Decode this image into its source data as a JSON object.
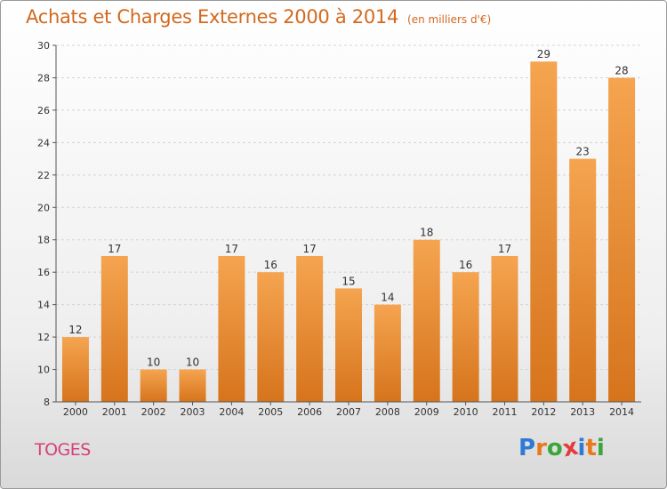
{
  "header": {
    "title": "Achats et Charges Externes 2000 à 2014",
    "subtitle": "(en milliers d'€)"
  },
  "footer": {
    "town": "TOGES",
    "logo_text": "Proxiti",
    "logo_colors": [
      "#2e7bd6",
      "#e8791e",
      "#3aa63a",
      "#e23c3c",
      "#2e7bd6",
      "#e8791e",
      "#3aa63a"
    ]
  },
  "chart_data": {
    "type": "bar",
    "title": "Achats et Charges Externes 2000 à 2014",
    "subtitle": "(en milliers d'€)",
    "categories": [
      "2000",
      "2001",
      "2002",
      "2003",
      "2004",
      "2005",
      "2006",
      "2007",
      "2008",
      "2009",
      "2010",
      "2011",
      "2012",
      "2013",
      "2014"
    ],
    "values": [
      12,
      17,
      10,
      10,
      17,
      16,
      17,
      15,
      14,
      18,
      16,
      17,
      29,
      23,
      28
    ],
    "ylim": [
      8,
      30
    ],
    "yticks": [
      8,
      10,
      12,
      14,
      16,
      18,
      20,
      22,
      24,
      26,
      28,
      30
    ],
    "grid": true,
    "bar_color_top": "#f5a450",
    "bar_color_bottom": "#d6741c"
  }
}
